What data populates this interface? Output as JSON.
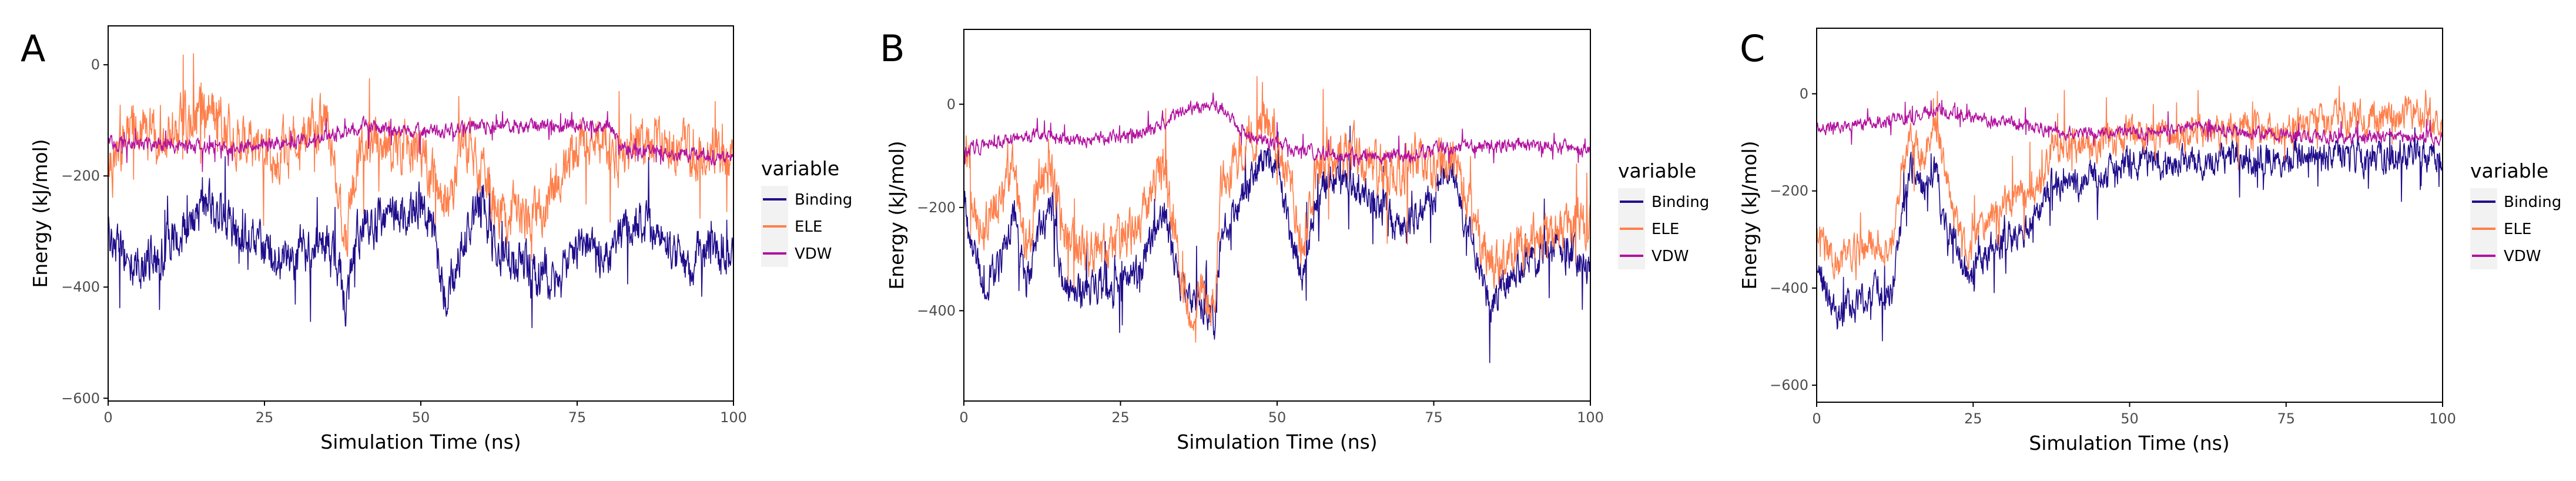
{
  "chart_data": [
    {
      "type": "line",
      "panel_label": "A",
      "xlabel": "Simulation Time (ns)",
      "ylabel": "Energy (kJ/mol)",
      "xlim": [
        0,
        100
      ],
      "ylim": [
        -605,
        70
      ],
      "x_ticks": [
        0,
        25,
        50,
        75,
        100
      ],
      "y_ticks": [
        0,
        -200,
        -400,
        -600
      ],
      "legend_title": "variable",
      "series": [
        {
          "name": "Binding",
          "color": "#1f0c8a",
          "points": [
            [
              0,
              -300
            ],
            [
              4,
              -370
            ],
            [
              8,
              -340
            ],
            [
              12,
              -300
            ],
            [
              16,
              -250
            ],
            [
              20,
              -290
            ],
            [
              24,
              -330
            ],
            [
              28,
              -360
            ],
            [
              32,
              -340
            ],
            [
              35,
              -320
            ],
            [
              37,
              -370
            ],
            [
              38,
              -450
            ],
            [
              40,
              -300
            ],
            [
              44,
              -280
            ],
            [
              48,
              -260
            ],
            [
              50,
              -240
            ],
            [
              52,
              -300
            ],
            [
              54,
              -420
            ],
            [
              56,
              -340
            ],
            [
              58,
              -300
            ],
            [
              60,
              -240
            ],
            [
              62,
              -340
            ],
            [
              66,
              -360
            ],
            [
              70,
              -380
            ],
            [
              72,
              -400
            ],
            [
              75,
              -330
            ],
            [
              78,
              -330
            ],
            [
              80,
              -360
            ],
            [
              82,
              -300
            ],
            [
              85,
              -280
            ],
            [
              88,
              -300
            ],
            [
              92,
              -360
            ],
            [
              96,
              -330
            ],
            [
              100,
              -340
            ]
          ],
          "spread": 70
        },
        {
          "name": "ELE",
          "color": "#ff7f4a",
          "points": [
            [
              0,
              -170
            ],
            [
              4,
              -120
            ],
            [
              8,
              -140
            ],
            [
              12,
              -100
            ],
            [
              16,
              -80
            ],
            [
              20,
              -120
            ],
            [
              24,
              -160
            ],
            [
              28,
              -150
            ],
            [
              32,
              -130
            ],
            [
              35,
              -100
            ],
            [
              37,
              -250
            ],
            [
              38,
              -320
            ],
            [
              40,
              -150
            ],
            [
              44,
              -140
            ],
            [
              48,
              -150
            ],
            [
              50,
              -150
            ],
            [
              52,
              -200
            ],
            [
              54,
              -260
            ],
            [
              56,
              -180
            ],
            [
              58,
              -140
            ],
            [
              60,
              -200
            ],
            [
              62,
              -250
            ],
            [
              66,
              -280
            ],
            [
              70,
              -260
            ],
            [
              72,
              -200
            ],
            [
              75,
              -150
            ],
            [
              78,
              -130
            ],
            [
              80,
              -150
            ],
            [
              82,
              -170
            ],
            [
              85,
              -150
            ],
            [
              88,
              -130
            ],
            [
              92,
              -160
            ],
            [
              96,
              -150
            ],
            [
              100,
              -160
            ]
          ],
          "spread": 80
        },
        {
          "name": "VDW",
          "color": "#b3129f",
          "points": [
            [
              0,
              -140
            ],
            [
              10,
              -145
            ],
            [
              20,
              -150
            ],
            [
              30,
              -140
            ],
            [
              40,
              -110
            ],
            [
              50,
              -120
            ],
            [
              60,
              -110
            ],
            [
              70,
              -110
            ],
            [
              80,
              -110
            ],
            [
              82,
              -150
            ],
            [
              90,
              -160
            ],
            [
              100,
              -170
            ]
          ],
          "spread": 22
        }
      ]
    },
    {
      "type": "line",
      "panel_label": "B",
      "xlabel": "Simulation Time (ns)",
      "ylabel": "Energy (kJ/mol)",
      "xlim": [
        0,
        100
      ],
      "ylim": [
        -575,
        145
      ],
      "x_ticks": [
        0,
        25,
        50,
        75,
        100
      ],
      "y_ticks": [
        0,
        -200,
        -400
      ],
      "legend_title": "variable",
      "series": [
        {
          "name": "Binding",
          "color": "#1f0c8a",
          "points": [
            [
              0,
              -180
            ],
            [
              3,
              -360
            ],
            [
              6,
              -300
            ],
            [
              8,
              -220
            ],
            [
              10,
              -350
            ],
            [
              12,
              -250
            ],
            [
              14,
              -200
            ],
            [
              16,
              -370
            ],
            [
              20,
              -360
            ],
            [
              24,
              -350
            ],
            [
              28,
              -330
            ],
            [
              30,
              -250
            ],
            [
              32,
              -220
            ],
            [
              34,
              -330
            ],
            [
              36,
              -380
            ],
            [
              38,
              -380
            ],
            [
              40,
              -420
            ],
            [
              41,
              -260
            ],
            [
              44,
              -200
            ],
            [
              46,
              -140
            ],
            [
              48,
              -100
            ],
            [
              50,
              -120
            ],
            [
              52,
              -250
            ],
            [
              54,
              -330
            ],
            [
              56,
              -200
            ],
            [
              58,
              -140
            ],
            [
              62,
              -150
            ],
            [
              66,
              -200
            ],
            [
              70,
              -250
            ],
            [
              72,
              -220
            ],
            [
              75,
              -180
            ],
            [
              78,
              -120
            ],
            [
              80,
              -240
            ],
            [
              82,
              -300
            ],
            [
              84,
              -400
            ],
            [
              86,
              -350
            ],
            [
              90,
              -300
            ],
            [
              95,
              -280
            ],
            [
              100,
              -320
            ]
          ],
          "spread": 60
        },
        {
          "name": "ELE",
          "color": "#ff7f4a",
          "points": [
            [
              0,
              -100
            ],
            [
              3,
              -250
            ],
            [
              6,
              -180
            ],
            [
              8,
              -120
            ],
            [
              10,
              -300
            ],
            [
              12,
              -150
            ],
            [
              14,
              -120
            ],
            [
              16,
              -270
            ],
            [
              20,
              -290
            ],
            [
              24,
              -260
            ],
            [
              28,
              -250
            ],
            [
              30,
              -150
            ],
            [
              32,
              -130
            ],
            [
              34,
              -280
            ],
            [
              36,
              -400
            ],
            [
              38,
              -350
            ],
            [
              40,
              -400
            ],
            [
              41,
              -150
            ],
            [
              44,
              -100
            ],
            [
              46,
              -60
            ],
            [
              48,
              -30
            ],
            [
              50,
              -80
            ],
            [
              52,
              -150
            ],
            [
              54,
              -280
            ],
            [
              56,
              -150
            ],
            [
              58,
              -100
            ],
            [
              62,
              -90
            ],
            [
              66,
              -130
            ],
            [
              70,
              -130
            ],
            [
              72,
              -100
            ],
            [
              75,
              -120
            ],
            [
              78,
              -90
            ],
            [
              80,
              -180
            ],
            [
              82,
              -250
            ],
            [
              84,
              -320
            ],
            [
              86,
              -300
            ],
            [
              90,
              -270
            ],
            [
              95,
              -250
            ],
            [
              100,
              -240
            ]
          ],
          "spread": 80
        },
        {
          "name": "VDW",
          "color": "#b3129f",
          "points": [
            [
              0,
              -90
            ],
            [
              10,
              -60
            ],
            [
              20,
              -70
            ],
            [
              30,
              -50
            ],
            [
              35,
              -10
            ],
            [
              40,
              0
            ],
            [
              42,
              -20
            ],
            [
              45,
              -60
            ],
            [
              50,
              -80
            ],
            [
              60,
              -100
            ],
            [
              70,
              -100
            ],
            [
              80,
              -80
            ],
            [
              90,
              -80
            ],
            [
              100,
              -90
            ]
          ],
          "spread": 22
        }
      ]
    },
    {
      "type": "line",
      "panel_label": "C",
      "xlabel": "Simulation Time (ns)",
      "ylabel": "Energy (kJ/mol)",
      "xlim": [
        0,
        100
      ],
      "ylim": [
        -635,
        135
      ],
      "x_ticks": [
        0,
        25,
        50,
        75,
        100
      ],
      "y_ticks": [
        0,
        -200,
        -400,
        -600
      ],
      "legend_title": "variable",
      "series": [
        {
          "name": "Binding",
          "color": "#1f0c8a",
          "points": [
            [
              0,
              -350
            ],
            [
              3,
              -460
            ],
            [
              6,
              -440
            ],
            [
              9,
              -400
            ],
            [
              12,
              -420
            ],
            [
              13,
              -300
            ],
            [
              15,
              -150
            ],
            [
              17,
              -200
            ],
            [
              19,
              -150
            ],
            [
              20,
              -250
            ],
            [
              22,
              -300
            ],
            [
              24,
              -380
            ],
            [
              26,
              -350
            ],
            [
              28,
              -320
            ],
            [
              30,
              -300
            ],
            [
              34,
              -280
            ],
            [
              36,
              -230
            ],
            [
              38,
              -170
            ],
            [
              40,
              -190
            ],
            [
              45,
              -170
            ],
            [
              50,
              -140
            ],
            [
              55,
              -150
            ],
            [
              60,
              -140
            ],
            [
              65,
              -130
            ],
            [
              70,
              -140
            ],
            [
              75,
              -130
            ],
            [
              80,
              -130
            ],
            [
              85,
              -130
            ],
            [
              90,
              -130
            ],
            [
              95,
              -120
            ],
            [
              100,
              -130
            ]
          ],
          "spread": 55
        },
        {
          "name": "ELE",
          "color": "#ff7f4a",
          "points": [
            [
              0,
              -280
            ],
            [
              3,
              -350
            ],
            [
              6,
              -330
            ],
            [
              9,
              -300
            ],
            [
              12,
              -320
            ],
            [
              13,
              -200
            ],
            [
              15,
              -80
            ],
            [
              17,
              -150
            ],
            [
              19,
              -60
            ],
            [
              20,
              -120
            ],
            [
              22,
              -250
            ],
            [
              24,
              -320
            ],
            [
              26,
              -280
            ],
            [
              28,
              -250
            ],
            [
              30,
              -230
            ],
            [
              34,
              -200
            ],
            [
              36,
              -180
            ],
            [
              38,
              -90
            ],
            [
              40,
              -110
            ],
            [
              45,
              -100
            ],
            [
              50,
              -80
            ],
            [
              55,
              -90
            ],
            [
              60,
              -80
            ],
            [
              65,
              -70
            ],
            [
              70,
              -80
            ],
            [
              75,
              -70
            ],
            [
              80,
              -60
            ],
            [
              85,
              -50
            ],
            [
              90,
              -50
            ],
            [
              95,
              -40
            ],
            [
              100,
              -60
            ]
          ],
          "spread": 60
        },
        {
          "name": "VDW",
          "color": "#b3129f",
          "points": [
            [
              0,
              -70
            ],
            [
              10,
              -60
            ],
            [
              18,
              -40
            ],
            [
              20,
              -30
            ],
            [
              25,
              -50
            ],
            [
              30,
              -60
            ],
            [
              40,
              -80
            ],
            [
              50,
              -80
            ],
            [
              60,
              -70
            ],
            [
              70,
              -80
            ],
            [
              80,
              -90
            ],
            [
              90,
              -90
            ],
            [
              100,
              -90
            ]
          ],
          "spread": 22
        }
      ]
    }
  ]
}
